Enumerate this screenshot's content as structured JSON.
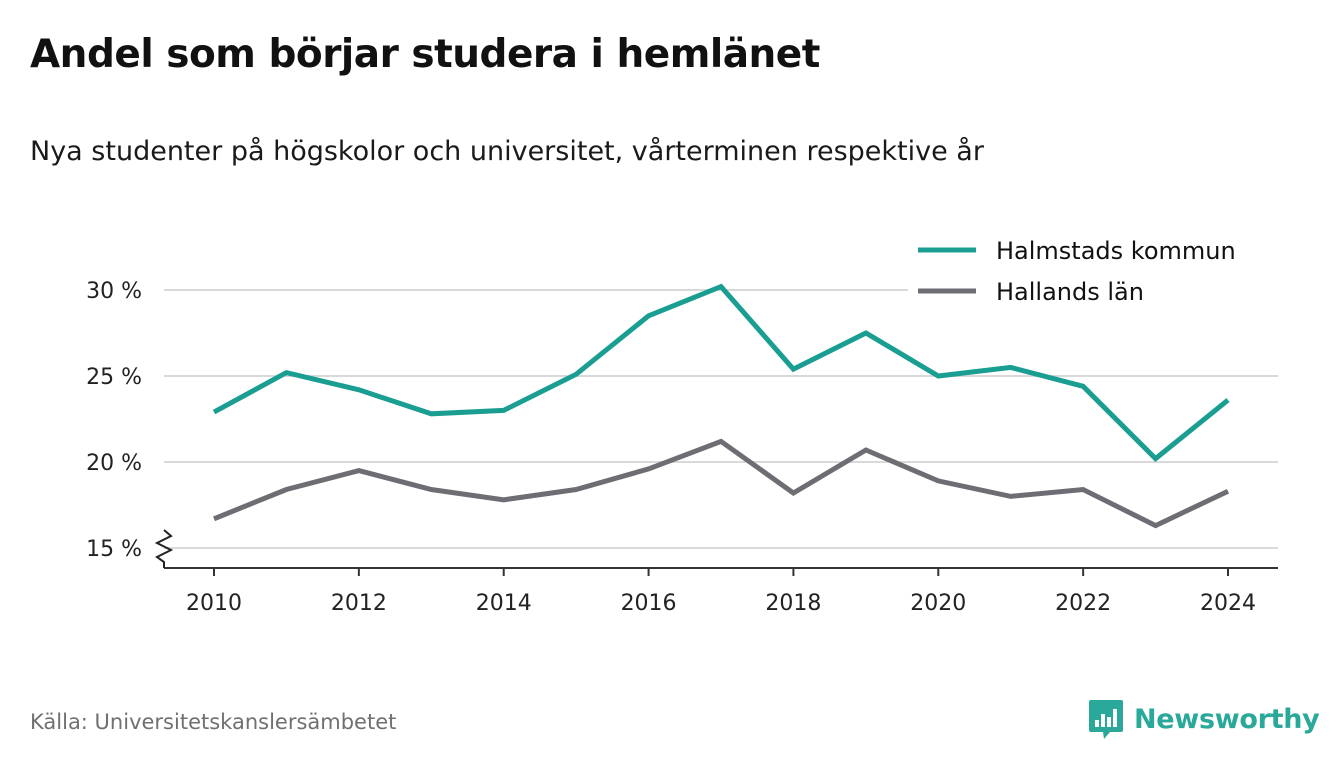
{
  "title": "Andel som börjar studera i hemlänet",
  "subtitle": "Nya studenter på högskolor och universitet, vårterminen respektive år",
  "source": "Källa: Universitetskanslersämbetet",
  "brand": "Newsworthy",
  "colors": {
    "accent": "#1a9e92",
    "secondary": "#6e6d74",
    "grid": "#d9d9d9",
    "axis": "#333333",
    "brand": "#2aa89a"
  },
  "chart_data": {
    "type": "line",
    "x": [
      2010,
      2011,
      2012,
      2013,
      2014,
      2015,
      2016,
      2017,
      2018,
      2019,
      2020,
      2021,
      2022,
      2023,
      2024
    ],
    "series": [
      {
        "name": "Halmstads kommun",
        "color": "#1a9e92",
        "values": [
          22.9,
          25.2,
          24.2,
          22.8,
          23.0,
          25.1,
          28.5,
          30.2,
          25.4,
          27.5,
          25.0,
          25.5,
          24.4,
          20.2,
          23.6
        ]
      },
      {
        "name": "Hallands län",
        "color": "#6e6d74",
        "values": [
          16.7,
          18.4,
          19.5,
          18.4,
          17.8,
          18.4,
          19.6,
          21.2,
          18.2,
          20.7,
          18.9,
          18.0,
          18.4,
          16.3,
          18.3
        ]
      }
    ],
    "yticks": [
      15,
      20,
      25,
      30
    ],
    "ytick_labels": [
      "15 %",
      "20 %",
      "25 %",
      "30 %"
    ],
    "xticks": [
      2010,
      2012,
      2014,
      2016,
      2018,
      2020,
      2022,
      2024
    ],
    "xtick_labels": [
      "2010",
      "2012",
      "2014",
      "2016",
      "2018",
      "2020",
      "2022",
      "2024"
    ],
    "ylim": [
      15,
      30
    ],
    "xlim": [
      2010,
      2024
    ],
    "y_axis_break": true,
    "grid": true,
    "legend_position": "top-right"
  }
}
